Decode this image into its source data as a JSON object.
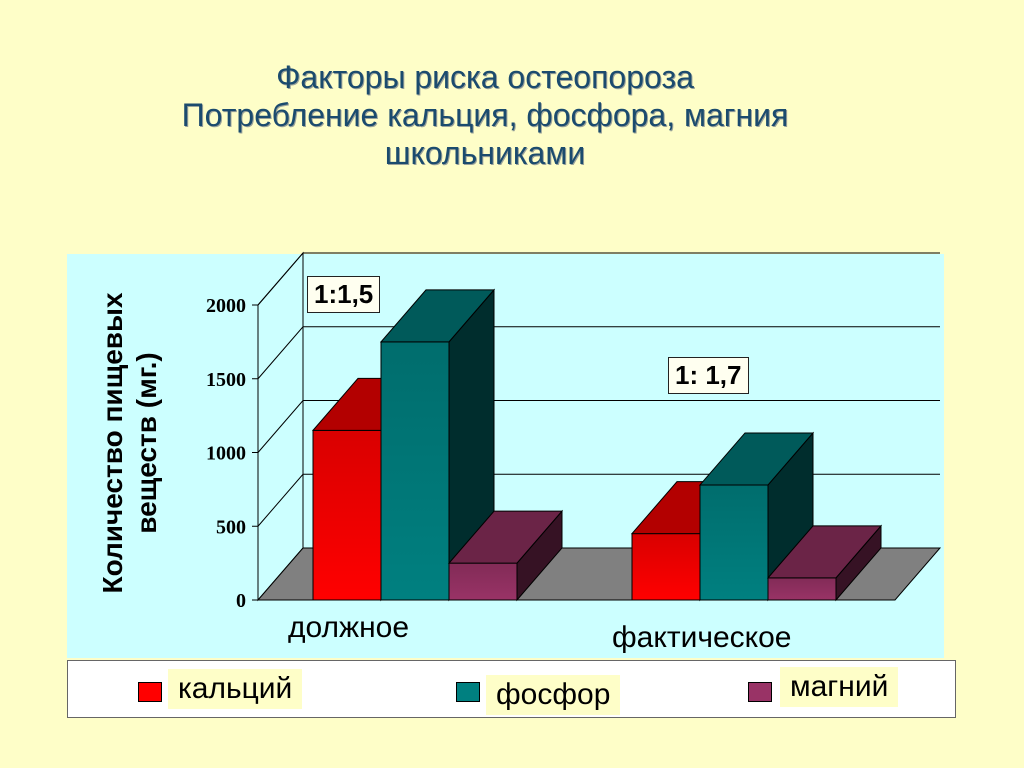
{
  "title": {
    "line1": "Факторы риска остеопороза",
    "line2": "Потребление кальция, фосфора, магния",
    "line3": "школьниками"
  },
  "chart_data": {
    "type": "bar",
    "categories": [
      "должное",
      "фактическое"
    ],
    "series": [
      {
        "name": "кальций",
        "values": [
          1150,
          450
        ],
        "color": "#ff0000"
      },
      {
        "name": "фосфор",
        "values": [
          1750,
          780
        ],
        "color": "#008080"
      },
      {
        "name": "магний",
        "values": [
          250,
          150
        ],
        "color": "#993366"
      }
    ],
    "ylabel": "Количество пищевых веществ (мг.)",
    "ylabel_line1": "Количество пищевых",
    "ylabel_line2": "веществ (мг.)",
    "yticks": [
      "0",
      "500",
      "1000",
      "1500",
      "2000"
    ],
    "ylim": [
      0,
      2000
    ],
    "grid": true,
    "legend_position": "bottom",
    "annotations": [
      "1:1,5",
      "1: 1,7"
    ]
  }
}
